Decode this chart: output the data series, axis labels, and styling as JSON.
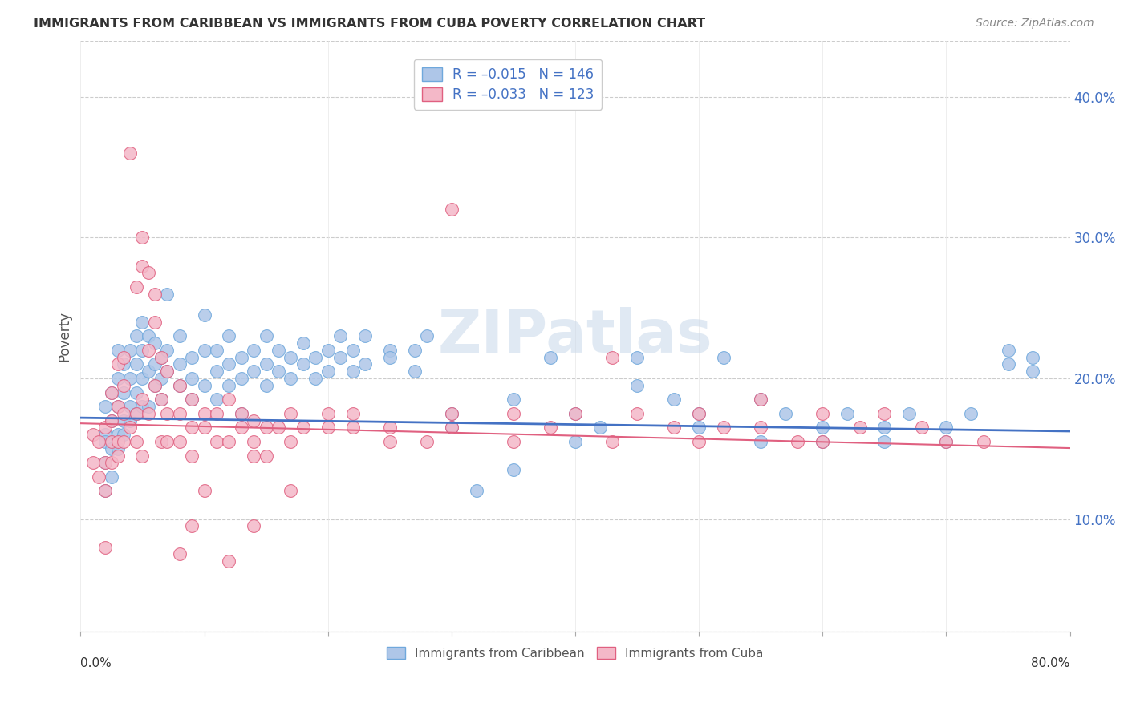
{
  "title": "IMMIGRANTS FROM CARIBBEAN VS IMMIGRANTS FROM CUBA POVERTY CORRELATION CHART",
  "source": "Source: ZipAtlas.com",
  "ylabel": "Poverty",
  "ytick_labels": [
    "10.0%",
    "20.0%",
    "30.0%",
    "40.0%"
  ],
  "ytick_values": [
    0.1,
    0.2,
    0.3,
    0.4
  ],
  "xlim": [
    0.0,
    0.8
  ],
  "ylim": [
    0.02,
    0.44
  ],
  "watermark": "ZIPatlas",
  "legend_entries": [
    {
      "label": "R = –0.015   N = 146",
      "color": "#aec6e8",
      "intercept": 0.172,
      "slope": -0.012
    },
    {
      "label": "R = –0.033   N = 123",
      "color": "#f4b8c8",
      "intercept": 0.168,
      "slope": -0.022
    }
  ],
  "caribbean_color": "#aec6e8",
  "caribbean_edge": "#6fa8dc",
  "cuba_color": "#f4b8c8",
  "cuba_edge": "#e06080",
  "trend_caribbean": "#4472c4",
  "trend_cuba": "#e06080",
  "caribbean_points": [
    [
      0.02,
      0.18
    ],
    [
      0.02,
      0.14
    ],
    [
      0.02,
      0.16
    ],
    [
      0.02,
      0.12
    ],
    [
      0.02,
      0.155
    ],
    [
      0.025,
      0.17
    ],
    [
      0.025,
      0.15
    ],
    [
      0.025,
      0.13
    ],
    [
      0.025,
      0.19
    ],
    [
      0.03,
      0.18
    ],
    [
      0.03,
      0.2
    ],
    [
      0.03,
      0.16
    ],
    [
      0.03,
      0.22
    ],
    [
      0.03,
      0.15
    ],
    [
      0.035,
      0.19
    ],
    [
      0.035,
      0.17
    ],
    [
      0.035,
      0.21
    ],
    [
      0.035,
      0.16
    ],
    [
      0.04,
      0.2
    ],
    [
      0.04,
      0.18
    ],
    [
      0.04,
      0.22
    ],
    [
      0.04,
      0.17
    ],
    [
      0.045,
      0.21
    ],
    [
      0.045,
      0.23
    ],
    [
      0.045,
      0.19
    ],
    [
      0.045,
      0.175
    ],
    [
      0.05,
      0.22
    ],
    [
      0.05,
      0.2
    ],
    [
      0.05,
      0.18
    ],
    [
      0.05,
      0.24
    ],
    [
      0.055,
      0.205
    ],
    [
      0.055,
      0.23
    ],
    [
      0.055,
      0.18
    ],
    [
      0.06,
      0.21
    ],
    [
      0.06,
      0.195
    ],
    [
      0.06,
      0.225
    ],
    [
      0.065,
      0.2
    ],
    [
      0.065,
      0.215
    ],
    [
      0.065,
      0.185
    ],
    [
      0.07,
      0.26
    ],
    [
      0.07,
      0.22
    ],
    [
      0.07,
      0.205
    ],
    [
      0.08,
      0.21
    ],
    [
      0.08,
      0.195
    ],
    [
      0.08,
      0.23
    ],
    [
      0.09,
      0.2
    ],
    [
      0.09,
      0.215
    ],
    [
      0.09,
      0.185
    ],
    [
      0.1,
      0.22
    ],
    [
      0.1,
      0.195
    ],
    [
      0.1,
      0.245
    ],
    [
      0.11,
      0.205
    ],
    [
      0.11,
      0.22
    ],
    [
      0.11,
      0.185
    ],
    [
      0.12,
      0.21
    ],
    [
      0.12,
      0.195
    ],
    [
      0.12,
      0.23
    ],
    [
      0.13,
      0.215
    ],
    [
      0.13,
      0.2
    ],
    [
      0.13,
      0.175
    ],
    [
      0.14,
      0.22
    ],
    [
      0.14,
      0.205
    ],
    [
      0.15,
      0.21
    ],
    [
      0.15,
      0.195
    ],
    [
      0.15,
      0.23
    ],
    [
      0.16,
      0.205
    ],
    [
      0.16,
      0.22
    ],
    [
      0.17,
      0.215
    ],
    [
      0.17,
      0.2
    ],
    [
      0.18,
      0.225
    ],
    [
      0.18,
      0.21
    ],
    [
      0.19,
      0.215
    ],
    [
      0.19,
      0.2
    ],
    [
      0.2,
      0.22
    ],
    [
      0.2,
      0.205
    ],
    [
      0.21,
      0.215
    ],
    [
      0.21,
      0.23
    ],
    [
      0.22,
      0.22
    ],
    [
      0.22,
      0.205
    ],
    [
      0.23,
      0.21
    ],
    [
      0.23,
      0.23
    ],
    [
      0.25,
      0.22
    ],
    [
      0.25,
      0.215
    ],
    [
      0.27,
      0.205
    ],
    [
      0.27,
      0.22
    ],
    [
      0.28,
      0.23
    ],
    [
      0.3,
      0.175
    ],
    [
      0.3,
      0.165
    ],
    [
      0.32,
      0.12
    ],
    [
      0.35,
      0.185
    ],
    [
      0.35,
      0.135
    ],
    [
      0.38,
      0.215
    ],
    [
      0.4,
      0.175
    ],
    [
      0.4,
      0.155
    ],
    [
      0.42,
      0.165
    ],
    [
      0.45,
      0.215
    ],
    [
      0.45,
      0.195
    ],
    [
      0.48,
      0.185
    ],
    [
      0.5,
      0.175
    ],
    [
      0.5,
      0.165
    ],
    [
      0.52,
      0.215
    ],
    [
      0.55,
      0.185
    ],
    [
      0.55,
      0.155
    ],
    [
      0.57,
      0.175
    ],
    [
      0.6,
      0.165
    ],
    [
      0.6,
      0.155
    ],
    [
      0.62,
      0.175
    ],
    [
      0.65,
      0.165
    ],
    [
      0.65,
      0.155
    ],
    [
      0.67,
      0.175
    ],
    [
      0.7,
      0.165
    ],
    [
      0.7,
      0.155
    ],
    [
      0.72,
      0.175
    ],
    [
      0.75,
      0.22
    ],
    [
      0.75,
      0.21
    ],
    [
      0.77,
      0.205
    ],
    [
      0.77,
      0.215
    ]
  ],
  "cuba_points": [
    [
      0.01,
      0.14
    ],
    [
      0.01,
      0.16
    ],
    [
      0.015,
      0.155
    ],
    [
      0.015,
      0.13
    ],
    [
      0.02,
      0.165
    ],
    [
      0.02,
      0.14
    ],
    [
      0.02,
      0.12
    ],
    [
      0.02,
      0.08
    ],
    [
      0.025,
      0.19
    ],
    [
      0.025,
      0.155
    ],
    [
      0.025,
      0.17
    ],
    [
      0.025,
      0.14
    ],
    [
      0.03,
      0.21
    ],
    [
      0.03,
      0.18
    ],
    [
      0.03,
      0.155
    ],
    [
      0.03,
      0.145
    ],
    [
      0.035,
      0.175
    ],
    [
      0.035,
      0.195
    ],
    [
      0.035,
      0.215
    ],
    [
      0.035,
      0.155
    ],
    [
      0.04,
      0.36
    ],
    [
      0.04,
      0.165
    ],
    [
      0.045,
      0.265
    ],
    [
      0.045,
      0.175
    ],
    [
      0.045,
      0.155
    ],
    [
      0.05,
      0.3
    ],
    [
      0.05,
      0.28
    ],
    [
      0.05,
      0.185
    ],
    [
      0.05,
      0.145
    ],
    [
      0.055,
      0.275
    ],
    [
      0.055,
      0.22
    ],
    [
      0.055,
      0.175
    ],
    [
      0.06,
      0.26
    ],
    [
      0.06,
      0.24
    ],
    [
      0.06,
      0.195
    ],
    [
      0.065,
      0.215
    ],
    [
      0.065,
      0.185
    ],
    [
      0.065,
      0.155
    ],
    [
      0.07,
      0.205
    ],
    [
      0.07,
      0.175
    ],
    [
      0.07,
      0.155
    ],
    [
      0.08,
      0.195
    ],
    [
      0.08,
      0.175
    ],
    [
      0.08,
      0.155
    ],
    [
      0.08,
      0.075
    ],
    [
      0.09,
      0.185
    ],
    [
      0.09,
      0.165
    ],
    [
      0.09,
      0.145
    ],
    [
      0.09,
      0.095
    ],
    [
      0.1,
      0.175
    ],
    [
      0.1,
      0.165
    ],
    [
      0.1,
      0.12
    ],
    [
      0.11,
      0.175
    ],
    [
      0.11,
      0.155
    ],
    [
      0.12,
      0.185
    ],
    [
      0.12,
      0.155
    ],
    [
      0.12,
      0.07
    ],
    [
      0.13,
      0.175
    ],
    [
      0.13,
      0.165
    ],
    [
      0.14,
      0.17
    ],
    [
      0.14,
      0.155
    ],
    [
      0.14,
      0.145
    ],
    [
      0.14,
      0.095
    ],
    [
      0.15,
      0.165
    ],
    [
      0.15,
      0.145
    ],
    [
      0.16,
      0.165
    ],
    [
      0.17,
      0.175
    ],
    [
      0.17,
      0.155
    ],
    [
      0.17,
      0.12
    ],
    [
      0.18,
      0.165
    ],
    [
      0.2,
      0.175
    ],
    [
      0.2,
      0.165
    ],
    [
      0.22,
      0.175
    ],
    [
      0.22,
      0.165
    ],
    [
      0.25,
      0.165
    ],
    [
      0.25,
      0.155
    ],
    [
      0.28,
      0.155
    ],
    [
      0.3,
      0.32
    ],
    [
      0.3,
      0.175
    ],
    [
      0.3,
      0.165
    ],
    [
      0.35,
      0.175
    ],
    [
      0.35,
      0.155
    ],
    [
      0.38,
      0.165
    ],
    [
      0.4,
      0.175
    ],
    [
      0.43,
      0.215
    ],
    [
      0.43,
      0.155
    ],
    [
      0.45,
      0.175
    ],
    [
      0.48,
      0.165
    ],
    [
      0.5,
      0.155
    ],
    [
      0.5,
      0.175
    ],
    [
      0.52,
      0.165
    ],
    [
      0.55,
      0.185
    ],
    [
      0.55,
      0.165
    ],
    [
      0.58,
      0.155
    ],
    [
      0.6,
      0.175
    ],
    [
      0.6,
      0.155
    ],
    [
      0.63,
      0.165
    ],
    [
      0.65,
      0.175
    ],
    [
      0.68,
      0.165
    ],
    [
      0.7,
      0.155
    ],
    [
      0.73,
      0.155
    ]
  ]
}
